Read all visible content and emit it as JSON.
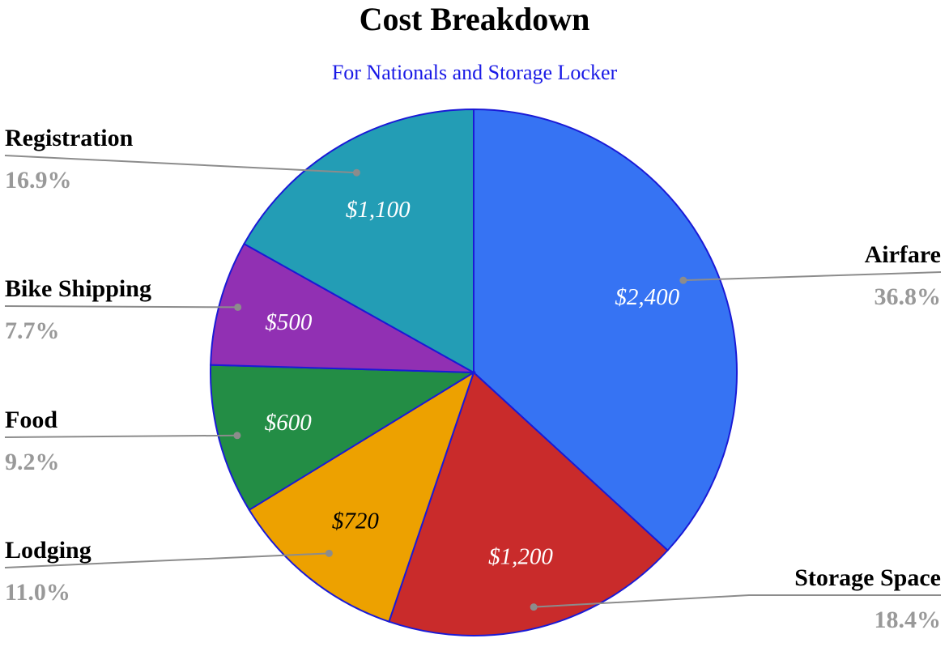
{
  "chart_data": {
    "type": "pie",
    "title": "Cost Breakdown",
    "subtitle": "For Nationals and Storage Locker",
    "slices": [
      {
        "label": "Airfare",
        "value": 2400,
        "value_label": "$2,400",
        "percent_label": "36.8%",
        "color": "#3673F3"
      },
      {
        "label": "Storage Space",
        "value": 1200,
        "value_label": "$1,200",
        "percent_label": "18.4%",
        "color": "#C92B2B"
      },
      {
        "label": "Lodging",
        "value": 720,
        "value_label": "$720",
        "percent_label": "11.0%",
        "color": "#EDA100"
      },
      {
        "label": "Food",
        "value": 600,
        "value_label": "$600",
        "percent_label": "9.2%",
        "color": "#238D45"
      },
      {
        "label": "Bike Shipping",
        "value": 500,
        "value_label": "$500",
        "percent_label": "7.7%",
        "color": "#9130B3"
      },
      {
        "label": "Registration",
        "value": 1100,
        "value_label": "$1,100",
        "percent_label": "16.9%",
        "color": "#239DB5"
      }
    ],
    "slice_border_color": "#1A1AD6",
    "subtitle_color": "#1A1AE6",
    "legend": "none",
    "start_angle": "top, clockwise"
  }
}
